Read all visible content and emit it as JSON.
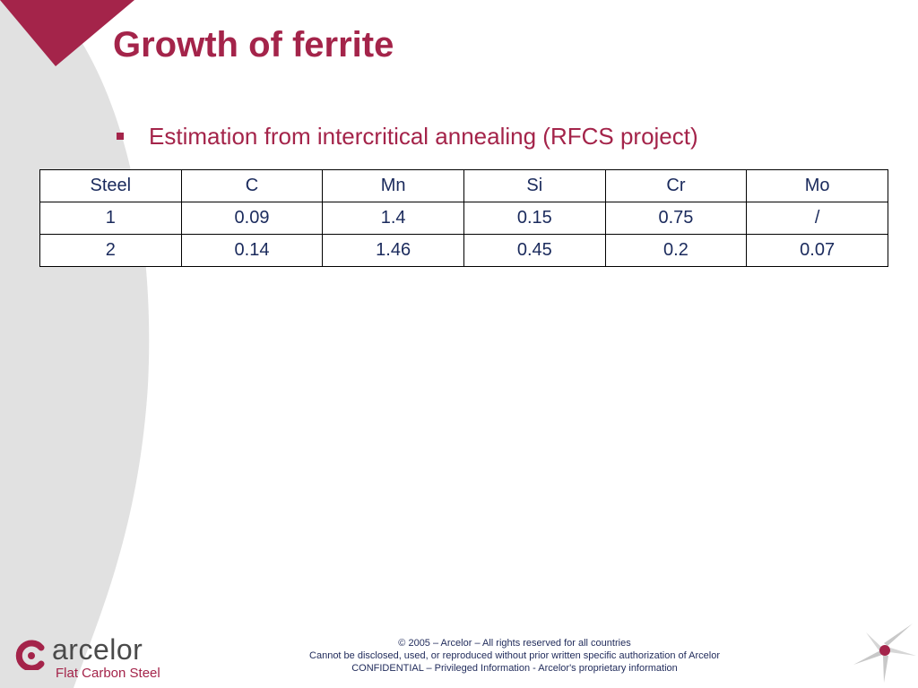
{
  "slide": {
    "title": "Growth of ferrite",
    "bullet": "Estimation from intercritical annealing (RFCS project)"
  },
  "table": {
    "headers": [
      "Steel",
      "C",
      "Mn",
      "Si",
      "Cr",
      "Mo"
    ],
    "rows": [
      [
        "1",
        "0.09",
        "1.4",
        "0.15",
        "0.75",
        "/"
      ],
      [
        "2",
        "0.14",
        "1.46",
        "0.45",
        "0.2",
        "0.07"
      ]
    ]
  },
  "logo": {
    "name": "arcelor",
    "subtitle": "Flat Carbon Steel"
  },
  "footer": {
    "line1": "© 2005 – Arcelor – All rights reserved for all countries",
    "line2": "Cannot be disclosed, used, or reproduced without prior written specific authorization of Arcelor",
    "line3": "CONFIDENTIAL – Privileged Information - Arcelor's proprietary information"
  },
  "colors": {
    "accent": "#a4244a",
    "background_shape": "#e1e1e1",
    "table_text": "#1a2a5c",
    "logo_text": "#4a4a4a"
  },
  "icons": [
    "bullet-square-icon",
    "arcelor-logo-icon",
    "star-icon"
  ]
}
